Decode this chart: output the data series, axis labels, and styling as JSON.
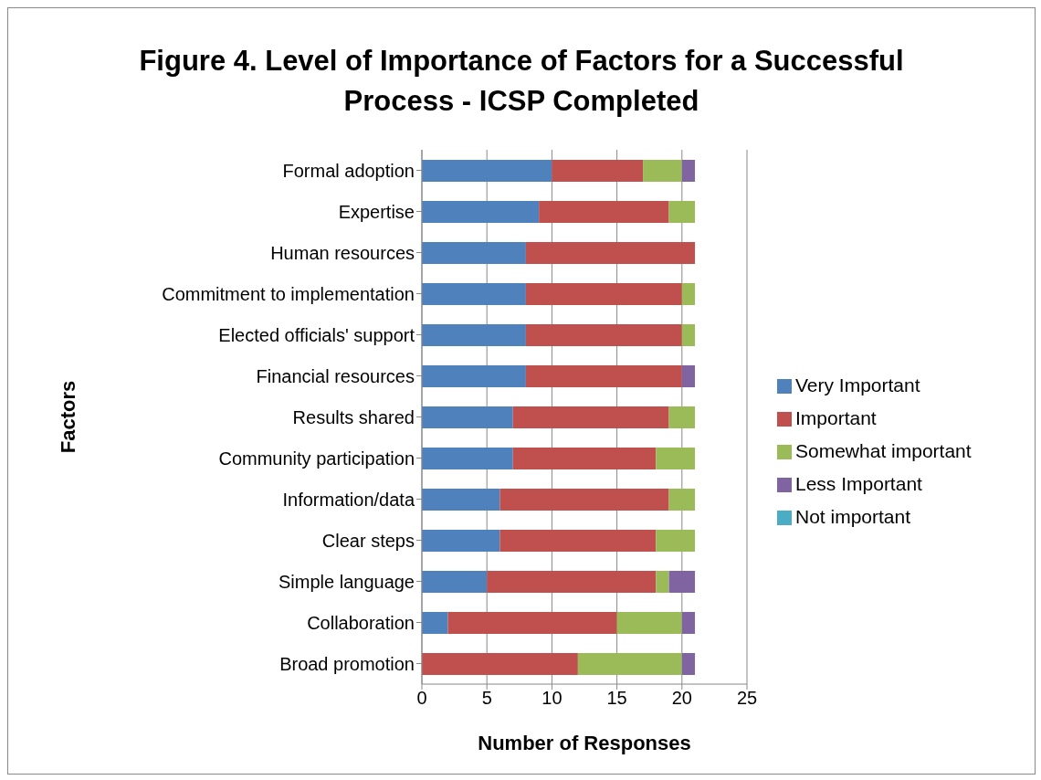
{
  "chart_data": {
    "type": "bar",
    "orientation": "horizontal",
    "stacked": true,
    "title": "Figure 4. Level of Importance of Factors for a Successful Process - ICSP Completed",
    "xlabel": "Number of Responses",
    "ylabel": "Factors",
    "categories": [
      "Formal adoption",
      "Expertise",
      "Human resources",
      "Commitment to implementation",
      "Elected officials' support",
      "Financial resources",
      "Results shared",
      "Community participation",
      "Information/data",
      "Clear steps",
      "Simple language",
      "Collaboration",
      "Broad promotion"
    ],
    "series": [
      {
        "name": "Very Important",
        "color": "#4f81bd",
        "values": [
          10,
          9,
          8,
          8,
          8,
          8,
          7,
          7,
          6,
          6,
          5,
          2,
          0
        ]
      },
      {
        "name": "Important",
        "color": "#c0504d",
        "values": [
          7,
          10,
          13,
          12,
          12,
          12,
          12,
          11,
          13,
          12,
          13,
          13,
          12
        ]
      },
      {
        "name": "Somewhat important",
        "color": "#9bbb59",
        "values": [
          3,
          2,
          0,
          1,
          1,
          0,
          2,
          3,
          2,
          3,
          1,
          5,
          8
        ]
      },
      {
        "name": "Less Important",
        "color": "#8064a2",
        "values": [
          1,
          0,
          0,
          0,
          0,
          1,
          0,
          0,
          0,
          0,
          2,
          1,
          1
        ]
      },
      {
        "name": "Not important",
        "color": "#4bacc6",
        "values": [
          0,
          0,
          0,
          0,
          0,
          0,
          0,
          0,
          0,
          0,
          0,
          0,
          0
        ]
      }
    ],
    "xlim": [
      0,
      25
    ],
    "xticks": [
      0,
      5,
      10,
      15,
      20,
      25
    ],
    "grid": "x",
    "legend": "right"
  }
}
